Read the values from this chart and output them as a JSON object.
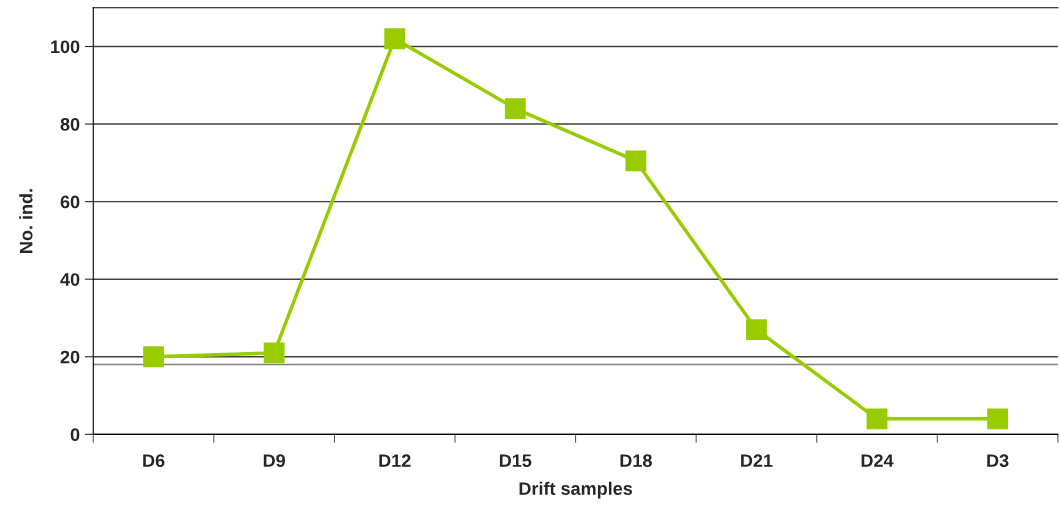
{
  "chart_data": {
    "type": "line",
    "xlabel": "Drift samples",
    "ylabel": "No. ind.",
    "categories": [
      "D6",
      "D9",
      "D12",
      "D15",
      "D18",
      "D21",
      "D24",
      "D3"
    ],
    "series": [
      {
        "color": "#99cc00",
        "values": [
          20,
          21,
          102,
          84,
          70.5,
          27,
          4,
          4
        ]
      }
    ],
    "ylim": [
      0,
      110
    ],
    "yticks": [
      0,
      20,
      40,
      60,
      80,
      100
    ],
    "grid": "y",
    "marker": "square",
    "line_style": "solid",
    "legend": false,
    "ref_lines": [
      {
        "axis": "y",
        "value": 18,
        "color": "#808080"
      }
    ]
  }
}
